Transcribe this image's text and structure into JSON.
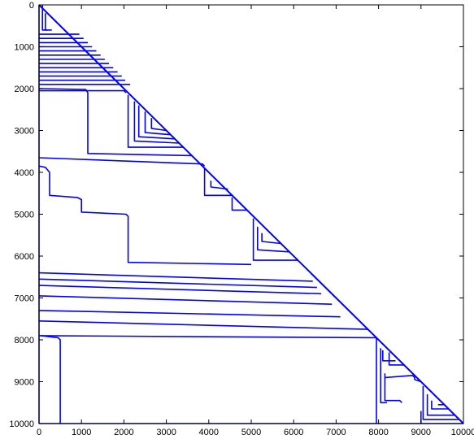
{
  "chart_data": {
    "type": "line",
    "title": "",
    "xlabel": "",
    "ylabel": "",
    "xlim": [
      0,
      10000
    ],
    "ylim": [
      0,
      10000
    ],
    "y_reversed": true,
    "grid": false,
    "legend": "none",
    "line_color": "#0000ff",
    "x_ticks": [
      "0",
      "1000",
      "2000",
      "3000",
      "4000",
      "5000",
      "6000",
      "7000",
      "8000",
      "9000",
      "10000"
    ],
    "y_ticks": [
      "0",
      "1000",
      "2000",
      "3000",
      "4000",
      "5000",
      "6000",
      "7000",
      "8000",
      "9000",
      "10000"
    ],
    "description_structure": "sparse matrix elimination-tree style profile: lower-triangular envelope",
    "diagonal": [
      [
        0,
        0
      ],
      [
        10000,
        10000
      ]
    ],
    "series": [
      {
        "x": [
          0,
          0
        ],
        "y": [
          0,
          10000
        ]
      },
      {
        "x": [
          0,
          10000
        ],
        "y": [
          10000,
          10000
        ]
      },
      {
        "x": [
          80,
          80,
          180
        ],
        "y": [
          0,
          600,
          600
        ]
      },
      {
        "x": [
          150,
          150,
          300
        ],
        "y": [
          200,
          600,
          600
        ]
      },
      {
        "x": [
          0,
          2150
        ],
        "y": [
          1900,
          1900
        ]
      },
      {
        "x": [
          0,
          2030
        ],
        "y": [
          1800,
          1800
        ]
      },
      {
        "x": [
          0,
          1950
        ],
        "y": [
          1700,
          1700
        ]
      },
      {
        "x": [
          0,
          1850
        ],
        "y": [
          1600,
          1600
        ]
      },
      {
        "x": [
          0,
          1750
        ],
        "y": [
          1500,
          1500
        ]
      },
      {
        "x": [
          0,
          1650
        ],
        "y": [
          1400,
          1400
        ]
      },
      {
        "x": [
          0,
          1550
        ],
        "y": [
          1300,
          1300
        ]
      },
      {
        "x": [
          0,
          1450
        ],
        "y": [
          1200,
          1200
        ]
      },
      {
        "x": [
          0,
          1350
        ],
        "y": [
          1100,
          1100
        ]
      },
      {
        "x": [
          0,
          1250
        ],
        "y": [
          1000,
          1000
        ]
      },
      {
        "x": [
          0,
          1150
        ],
        "y": [
          900,
          900
        ]
      },
      {
        "x": [
          0,
          1050
        ],
        "y": [
          800,
          800
        ]
      },
      {
        "x": [
          0,
          950
        ],
        "y": [
          700,
          700
        ]
      },
      {
        "x": [
          0,
          2000,
          2050
        ],
        "y": [
          2050,
          2050,
          2100
        ]
      },
      {
        "x": [
          0,
          1100,
          1150,
          1150,
          3600
        ],
        "y": [
          2000,
          2020,
          2100,
          3550,
          3600
        ]
      },
      {
        "x": [
          2100,
          2100,
          3400
        ],
        "y": [
          2150,
          3400,
          3400
        ]
      },
      {
        "x": [
          2250,
          2250,
          3300
        ],
        "y": [
          2300,
          3250,
          3300
        ]
      },
      {
        "x": [
          2350,
          2350,
          3200
        ],
        "y": [
          2400,
          3150,
          3200
        ]
      },
      {
        "x": [
          2500,
          2500,
          3100
        ],
        "y": [
          2550,
          3050,
          3100
        ]
      },
      {
        "x": [
          2650,
          2650,
          3000
        ],
        "y": [
          2700,
          2950,
          3000
        ]
      },
      {
        "x": [
          0,
          3850,
          3900
        ],
        "y": [
          3650,
          3800,
          3850
        ]
      },
      {
        "x": [
          0,
          150,
          250,
          250,
          900,
          1000,
          1000,
          2050,
          2100,
          2100,
          5000
        ],
        "y": [
          3850,
          3880,
          4000,
          4550,
          4600,
          4650,
          4950,
          5000,
          5050,
          6150,
          6200
        ]
      },
      {
        "x": [
          3900,
          3900,
          4550
        ],
        "y": [
          3900,
          4550,
          4550
        ]
      },
      {
        "x": [
          4050,
          4050,
          4450
        ],
        "y": [
          4200,
          4350,
          4400
        ]
      },
      {
        "x": [
          4550,
          4550,
          4900
        ],
        "y": [
          4600,
          4900,
          4900
        ]
      },
      {
        "x": [
          5050,
          5050,
          6100
        ],
        "y": [
          5100,
          6100,
          6100
        ]
      },
      {
        "x": [
          5150,
          5150,
          5900
        ],
        "y": [
          5300,
          5850,
          5900
        ]
      },
      {
        "x": [
          5250,
          5250,
          5700
        ],
        "y": [
          5450,
          5650,
          5700
        ]
      },
      {
        "x": [
          0,
          6450
        ],
        "y": [
          6400,
          6600
        ]
      },
      {
        "x": [
          0,
          6550
        ],
        "y": [
          6550,
          6750
        ]
      },
      {
        "x": [
          0,
          6650
        ],
        "y": [
          6700,
          6900
        ]
      },
      {
        "x": [
          0,
          6900
        ],
        "y": [
          6950,
          7150
        ]
      },
      {
        "x": [
          0,
          7100
        ],
        "y": [
          7300,
          7450
        ]
      },
      {
        "x": [
          0,
          7750
        ],
        "y": [
          7550,
          7750
        ]
      },
      {
        "x": [
          0,
          7950
        ],
        "y": [
          7900,
          7950
        ]
      },
      {
        "x": [
          50,
          450,
          500,
          500
        ],
        "y": [
          7900,
          7950,
          8000,
          10000
        ]
      },
      {
        "x": [
          7950,
          7950
        ],
        "y": [
          7950,
          10000
        ]
      },
      {
        "x": [
          8050,
          8050,
          8200
        ],
        "y": [
          8200,
          9500,
          9500
        ]
      },
      {
        "x": [
          8150,
          8150,
          8500,
          8550
        ],
        "y": [
          8800,
          9450,
          9450,
          9500
        ]
      },
      {
        "x": [
          8100,
          8100,
          8400
        ],
        "y": [
          8250,
          8500,
          8500
        ]
      },
      {
        "x": [
          8250,
          8250,
          8600
        ],
        "y": [
          8300,
          8600,
          8600
        ]
      },
      {
        "x": [
          8150,
          8800,
          8850,
          8850,
          9000
        ],
        "y": [
          8900,
          8850,
          8900,
          8950,
          9000
        ]
      },
      {
        "x": [
          9050,
          9050,
          9900
        ],
        "y": [
          9100,
          9900,
          9900
        ]
      },
      {
        "x": [
          9150,
          9150,
          9800
        ],
        "y": [
          9300,
          9800,
          9800
        ]
      },
      {
        "x": [
          9250,
          9250,
          9650
        ],
        "y": [
          9450,
          9650,
          9650
        ]
      },
      {
        "x": [
          9400,
          9400,
          9550
        ],
        "y": [
          9550,
          9550,
          9550
        ]
      },
      {
        "x": [
          9000,
          9000
        ],
        "y": [
          9700,
          10000
        ]
      }
    ]
  }
}
